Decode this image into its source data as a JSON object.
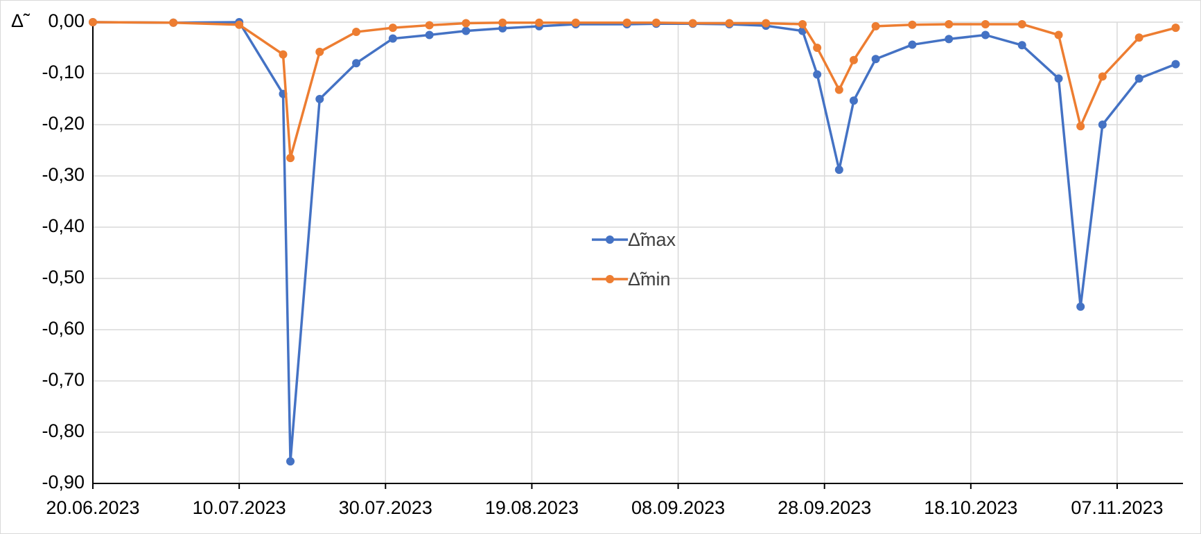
{
  "chart_data": {
    "type": "line",
    "y_axis_label": "Δ̃",
    "x": [
      "20.06.2023",
      "01.07.2023",
      "10.07.2023",
      "16.07.2023",
      "17.07.2023",
      "21.07.2023",
      "26.07.2023",
      "31.07.2023",
      "05.08.2023",
      "10.08.2023",
      "15.08.2023",
      "20.08.2023",
      "25.08.2023",
      "01.09.2023",
      "05.09.2023",
      "10.09.2023",
      "15.09.2023",
      "20.09.2023",
      "25.09.2023",
      "27.09.2023",
      "30.09.2023",
      "02.10.2023",
      "05.10.2023",
      "10.10.2023",
      "15.10.2023",
      "20.10.2023",
      "25.10.2023",
      "30.10.2023",
      "02.11.2023",
      "05.11.2023",
      "10.11.2023",
      "15.11.2023"
    ],
    "series": [
      {
        "name": "Δ̃max",
        "color": "#4472c4",
        "values": [
          0,
          -0.001,
          0,
          -0.14,
          -0.857,
          -0.15,
          -0.08,
          -0.032,
          -0.025,
          -0.017,
          -0.012,
          -0.008,
          -0.004,
          -0.004,
          -0.003,
          -0.003,
          -0.004,
          -0.007,
          -0.017,
          -0.102,
          -0.288,
          -0.153,
          -0.072,
          -0.044,
          -0.033,
          -0.025,
          -0.045,
          -0.11,
          -0.555,
          -0.2,
          -0.11,
          -0.082
        ]
      },
      {
        "name": "Δ̃min",
        "color": "#ed7d31",
        "values": [
          0,
          -0.001,
          -0.005,
          -0.063,
          -0.265,
          -0.058,
          -0.019,
          -0.011,
          -0.006,
          -0.002,
          -0.001,
          -0.001,
          -0.001,
          -0.001,
          -0.001,
          -0.002,
          -0.002,
          -0.002,
          -0.004,
          -0.05,
          -0.132,
          -0.074,
          -0.008,
          -0.005,
          -0.004,
          -0.004,
          -0.004,
          -0.025,
          -0.203,
          -0.106,
          -0.03,
          -0.011
        ]
      }
    ],
    "xlim": [
      "20.06.2023",
      "16.11.2023"
    ],
    "xticks": [
      "20.06.2023",
      "10.07.2023",
      "30.07.2023",
      "19.08.2023",
      "08.09.2023",
      "28.09.2023",
      "18.10.2023",
      "07.11.2023"
    ],
    "ylim": [
      -0.9,
      0
    ],
    "yticks": [
      {
        "value": 0,
        "label": "0,00"
      },
      {
        "value": -0.1,
        "label": "-0,10"
      },
      {
        "value": -0.2,
        "label": "-0,20"
      },
      {
        "value": -0.3,
        "label": "-0,30"
      },
      {
        "value": -0.4,
        "label": "-0,40"
      },
      {
        "value": -0.5,
        "label": "-0,50"
      },
      {
        "value": -0.6,
        "label": "-0,60"
      },
      {
        "value": -0.7,
        "label": "-0,70"
      },
      {
        "value": -0.8,
        "label": "-0,80"
      },
      {
        "value": -0.9,
        "label": "-0,90"
      }
    ],
    "grid": true
  }
}
